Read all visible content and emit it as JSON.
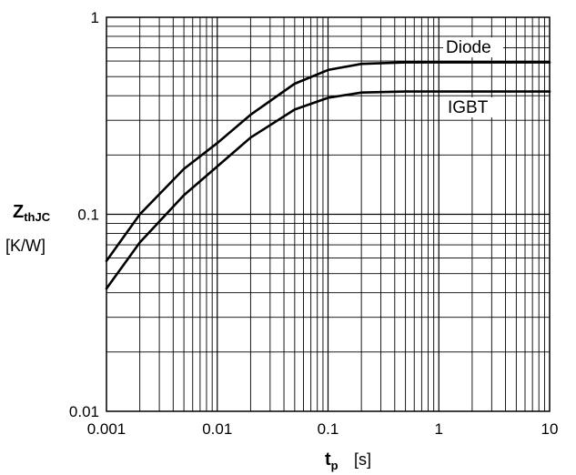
{
  "chart_data": {
    "type": "line",
    "x_scale": "log",
    "y_scale": "log",
    "xlim": [
      0.001,
      10
    ],
    "ylim": [
      0.01,
      1
    ],
    "x_ticks": [
      "0.001",
      "0.01",
      "0.1",
      "1",
      "10"
    ],
    "y_ticks": [
      "0.01",
      "0.1",
      "1"
    ],
    "grid": true,
    "xlabel": {
      "main": "t",
      "sub": "p",
      "unit": "[s]"
    },
    "ylabel": {
      "main": "Z",
      "sub": "thJC",
      "unit": "[K/W]"
    },
    "series": [
      {
        "name": "Diode",
        "x": [
          0.001,
          0.002,
          0.005,
          0.01,
          0.02,
          0.05,
          0.1,
          0.2,
          0.5,
          1,
          2,
          5,
          10
        ],
        "y": [
          0.058,
          0.1,
          0.17,
          0.23,
          0.32,
          0.46,
          0.54,
          0.58,
          0.59,
          0.59,
          0.59,
          0.59,
          0.59
        ]
      },
      {
        "name": "IGBT",
        "x": [
          0.001,
          0.002,
          0.005,
          0.01,
          0.02,
          0.05,
          0.1,
          0.2,
          0.5,
          1,
          2,
          5,
          10
        ],
        "y": [
          0.042,
          0.072,
          0.125,
          0.175,
          0.245,
          0.34,
          0.39,
          0.415,
          0.42,
          0.42,
          0.42,
          0.42,
          0.42
        ]
      }
    ]
  }
}
